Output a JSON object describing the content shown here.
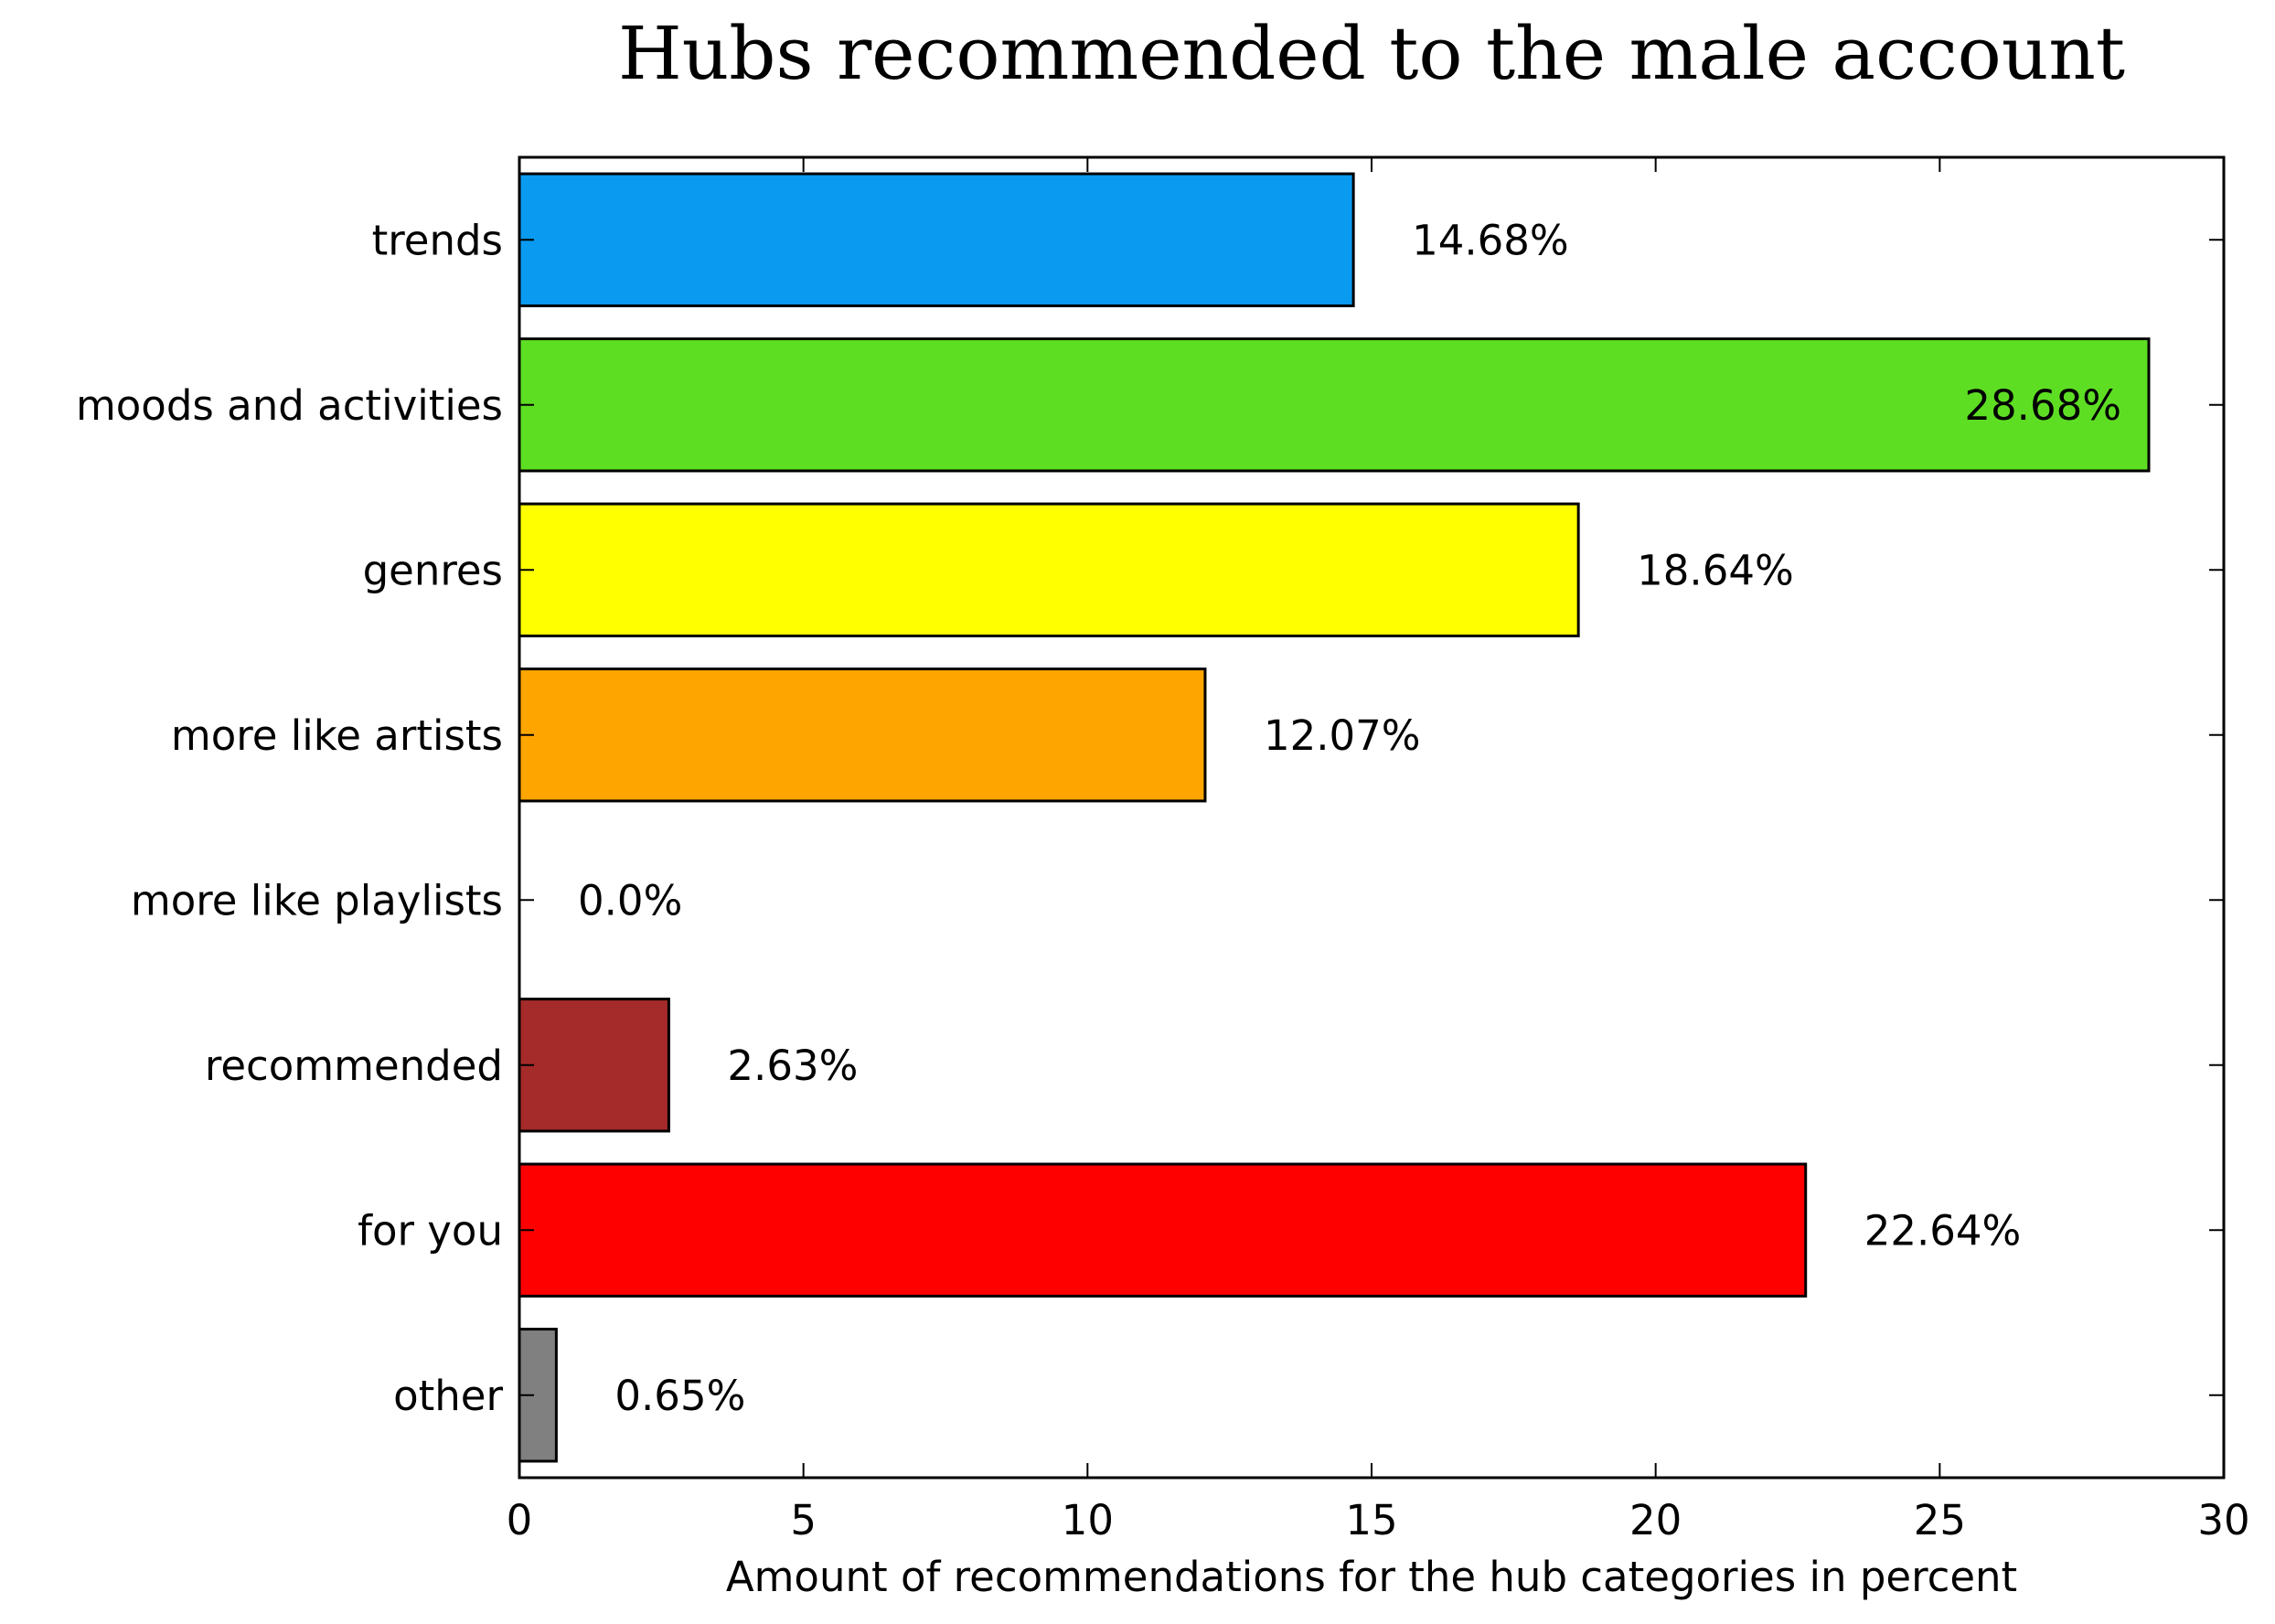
{
  "chart_data": {
    "type": "bar",
    "orientation": "horizontal",
    "title": "Hubs recommended to the male account",
    "xlabel": "Amount of recommendations for the hub categories in percent",
    "ylabel": "",
    "xlim": [
      0,
      30
    ],
    "xticks": [
      "0",
      "5",
      "10",
      "15",
      "20",
      "25",
      "30"
    ],
    "grid": false,
    "categories": [
      "trends",
      "moods and activities",
      "genres",
      "more like artists",
      "more like playlists",
      "recommended",
      "for you",
      "other"
    ],
    "values": [
      14.68,
      28.68,
      18.64,
      12.07,
      0.0,
      2.63,
      22.64,
      0.65
    ],
    "value_labels": [
      "14.68%",
      "28.68%",
      "18.64%",
      "12.07%",
      "0.0%",
      "2.63%",
      "22.64%",
      "0.65%"
    ],
    "colors": [
      "#0a9af0",
      "#5ede23",
      "#ffff00",
      "#ffa500",
      "#ffffff",
      "#a52a2a",
      "#ff0000",
      "#808080"
    ]
  }
}
